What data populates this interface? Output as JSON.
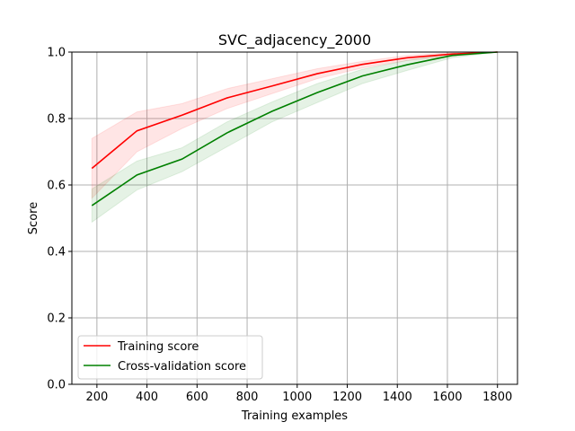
{
  "chart_data": {
    "type": "line",
    "title": "SVC_adjacency_2000",
    "xlabel": "Training examples",
    "ylabel": "Score",
    "xlim": [
      100,
      1880
    ],
    "ylim": [
      0.0,
      1.0
    ],
    "xticks": [
      200,
      400,
      600,
      800,
      1000,
      1200,
      1400,
      1600,
      1800
    ],
    "yticks": [
      0.0,
      0.2,
      0.4,
      0.6,
      0.8,
      1.0
    ],
    "xtick_labels": [
      "200",
      "400",
      "600",
      "800",
      "1000",
      "1200",
      "1400",
      "1600",
      "1800"
    ],
    "ytick_labels": [
      "0.0",
      "0.2",
      "0.4",
      "0.6",
      "0.8",
      "1.0"
    ],
    "grid": true,
    "legend_position": "lower-left",
    "x": [
      180,
      360,
      540,
      720,
      900,
      1080,
      1260,
      1440,
      1620,
      1800
    ],
    "series": [
      {
        "name": "Training score",
        "color": "#ff0000",
        "values": [
          0.65,
          0.763,
          0.81,
          0.862,
          0.898,
          0.935,
          0.963,
          0.983,
          0.994,
          1.0
        ],
        "band_lower": [
          0.56,
          0.7,
          0.77,
          0.83,
          0.875,
          0.92,
          0.952,
          0.975,
          0.988,
          1.0
        ],
        "band_upper": [
          0.74,
          0.82,
          0.845,
          0.89,
          0.92,
          0.95,
          0.972,
          0.99,
          0.998,
          1.0
        ]
      },
      {
        "name": "Cross-validation score",
        "color": "#008000",
        "values": [
          0.538,
          0.63,
          0.678,
          0.757,
          0.822,
          0.878,
          0.928,
          0.962,
          0.99,
          1.0
        ],
        "band_lower": [
          0.488,
          0.585,
          0.64,
          0.715,
          0.79,
          0.848,
          0.905,
          0.945,
          0.983,
          1.0
        ],
        "band_upper": [
          0.588,
          0.672,
          0.712,
          0.79,
          0.85,
          0.905,
          0.948,
          0.975,
          0.996,
          1.0
        ]
      }
    ]
  }
}
